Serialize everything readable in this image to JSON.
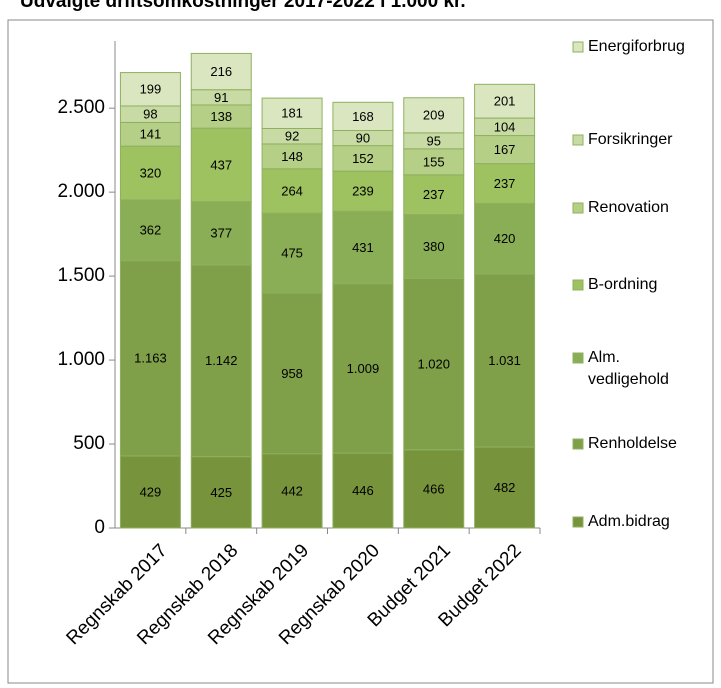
{
  "chart_data": {
    "type": "stacked_bar",
    "title": "Udvalgte driftsomkostninger 2017-2022 i 1.000 kr.",
    "categories": [
      "Regnskab 2017",
      "Regnskab 2018",
      "Regnskab 2019",
      "Regnskab 2020",
      "Budget 2021",
      "Budget 2022"
    ],
    "series": [
      {
        "name": "Adm.bidrag",
        "color": "#77933c",
        "values": [
          429,
          425,
          442,
          446,
          466,
          482
        ]
      },
      {
        "name": "Renholdelse",
        "color": "#7fa049",
        "values": [
          1163,
          1142,
          958,
          1009,
          1020,
          1031
        ],
        "value_labels": [
          "1.163",
          "1.142",
          "958",
          "1.009",
          "1.020",
          "1.031"
        ]
      },
      {
        "name": "Alm. vedligehold",
        "color": "#8aae55",
        "values": [
          362,
          377,
          475,
          431,
          380,
          420
        ]
      },
      {
        "name": "B-ordning",
        "color": "#9dc25f",
        "values": [
          320,
          437,
          264,
          239,
          237,
          237
        ]
      },
      {
        "name": "Renovation",
        "color": "#b5cf86",
        "values": [
          141,
          138,
          148,
          152,
          155,
          167
        ]
      },
      {
        "name": "Forsikringer",
        "color": "#c8dba4",
        "values": [
          98,
          91,
          92,
          90,
          95,
          104
        ]
      },
      {
        "name": "Energiforbrug",
        "color": "#d9e6c0",
        "values": [
          199,
          216,
          181,
          168,
          209,
          201
        ]
      }
    ],
    "ylim": [
      0,
      2900
    ],
    "yticks": [
      0,
      500,
      {
        "value": 1000,
        "label": "1.000"
      },
      {
        "value": 1500,
        "label": "1.500"
      },
      {
        "value": 2000,
        "label": "2.000"
      },
      {
        "value": 2500,
        "label": "2.500"
      }
    ],
    "legend": "right"
  }
}
